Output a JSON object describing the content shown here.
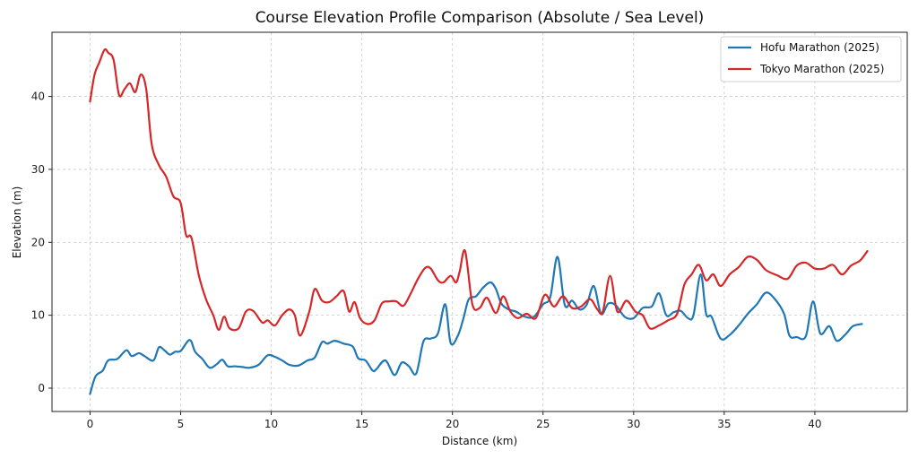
{
  "chart_data": {
    "type": "line",
    "title": "Course Elevation Profile Comparison (Absolute / Sea Level)",
    "xlabel": "Distance (km)",
    "ylabel": "Elevation (m)",
    "xlim": [
      -2.1,
      45.1
    ],
    "ylim": [
      -3.2,
      48.8
    ],
    "xticks": [
      0,
      5,
      10,
      15,
      20,
      25,
      30,
      35,
      40
    ],
    "yticks": [
      0,
      10,
      20,
      30,
      40
    ],
    "grid": true,
    "legend_position": "top-right",
    "series": [
      {
        "name": "Hofu Marathon (2025)",
        "color": "#1f77b4",
        "x": [
          0,
          0.3,
          0.7,
          1.0,
          1.5,
          2.0,
          2.3,
          2.7,
          3.0,
          3.5,
          3.8,
          4.1,
          4.4,
          4.7,
          5.0,
          5.5,
          5.8,
          6.2,
          6.6,
          7.0,
          7.3,
          7.6,
          8.0,
          8.4,
          8.8,
          9.3,
          9.8,
          10.2,
          10.6,
          11.0,
          11.5,
          12.0,
          12.4,
          12.8,
          13.1,
          13.5,
          14.0,
          14.5,
          14.8,
          15.2,
          15.6,
          15.8,
          16.3,
          16.8,
          17.2,
          17.6,
          18.0,
          18.4,
          18.8,
          19.2,
          19.6,
          19.9,
          20.3,
          20.6,
          20.9,
          21.3,
          21.7,
          22.1,
          22.4,
          22.7,
          23.1,
          23.5,
          24.0,
          24.5,
          25.0,
          25.4,
          25.8,
          26.2,
          26.6,
          27.0,
          27.4,
          27.8,
          28.2,
          28.6,
          29.0,
          29.5,
          30.0,
          30.5,
          31.0,
          31.4,
          31.8,
          32.2,
          32.6,
          33.0,
          33.3,
          33.7,
          34.0,
          34.3,
          34.8,
          35.3,
          35.8,
          36.3,
          36.8,
          37.3,
          37.8,
          38.3,
          38.6,
          39.0,
          39.5,
          39.9,
          40.3,
          40.8,
          41.2,
          41.7,
          42.1,
          42.6
        ],
        "values": [
          -0.8,
          1.6,
          2.4,
          3.8,
          4.0,
          5.2,
          4.4,
          4.8,
          4.4,
          3.8,
          5.6,
          5.2,
          4.6,
          5.0,
          5.1,
          6.6,
          5.0,
          4.0,
          2.8,
          3.3,
          3.9,
          3.0,
          3.0,
          2.9,
          2.8,
          3.2,
          4.5,
          4.3,
          3.8,
          3.2,
          3.1,
          3.8,
          4.2,
          6.3,
          6.1,
          6.5,
          6.1,
          5.7,
          4.1,
          3.8,
          2.4,
          2.6,
          3.8,
          1.8,
          3.5,
          3.0,
          2.0,
          6.4,
          6.8,
          7.5,
          11.5,
          6.2,
          7.2,
          9.5,
          12.2,
          12.6,
          13.8,
          14.5,
          13.6,
          11.6,
          10.8,
          10.5,
          9.8,
          9.8,
          11.5,
          12.5,
          18.0,
          11.4,
          12.0,
          10.8,
          11.4,
          14.0,
          10.2,
          11.6,
          11.4,
          9.8,
          9.6,
          11.0,
          11.2,
          13.0,
          10.0,
          10.4,
          10.6,
          9.6,
          10.0,
          15.6,
          10.2,
          9.8,
          6.8,
          7.3,
          8.6,
          10.2,
          11.5,
          13.1,
          12.2,
          10.2,
          7.2,
          7.0,
          7.1,
          11.9,
          7.5,
          8.5,
          6.5,
          7.4,
          8.5,
          8.8
        ]
      },
      {
        "name": "Tokyo Marathon (2025)",
        "color": "#d62728",
        "x": [
          0,
          0.25,
          0.5,
          0.8,
          1.0,
          1.3,
          1.6,
          1.9,
          2.2,
          2.5,
          2.8,
          3.1,
          3.4,
          3.8,
          4.2,
          4.6,
          5.0,
          5.3,
          5.6,
          6.0,
          6.4,
          6.8,
          7.1,
          7.4,
          7.7,
          8.2,
          8.6,
          9.0,
          9.5,
          9.8,
          10.2,
          10.6,
          11.0,
          11.3,
          11.6,
          12.1,
          12.4,
          12.8,
          13.2,
          13.6,
          14.0,
          14.3,
          14.6,
          14.9,
          15.3,
          15.7,
          16.1,
          16.5,
          16.9,
          17.3,
          17.7,
          18.1,
          18.5,
          18.8,
          19.2,
          19.5,
          19.9,
          20.2,
          20.4,
          20.7,
          21.1,
          21.5,
          21.9,
          22.4,
          22.8,
          23.2,
          23.6,
          24.1,
          24.6,
          25.1,
          25.6,
          26.1,
          26.6,
          27.1,
          27.6,
          28.0,
          28.3,
          28.7,
          29.1,
          29.6,
          30.1,
          30.5,
          30.9,
          31.4,
          31.9,
          32.4,
          32.8,
          33.2,
          33.6,
          34.0,
          34.4,
          34.8,
          35.3,
          35.8,
          36.3,
          36.8,
          37.3,
          37.9,
          38.5,
          39.0,
          39.5,
          40.0,
          40.5,
          41.0,
          41.5,
          42.0,
          42.5,
          42.9
        ],
        "values": [
          39.3,
          43.0,
          44.6,
          46.4,
          46.0,
          45.0,
          40.2,
          41.0,
          41.8,
          40.6,
          43.0,
          41.0,
          33.5,
          30.6,
          29.0,
          26.3,
          25.4,
          21.0,
          20.6,
          15.5,
          12.2,
          10.0,
          8.0,
          9.8,
          8.2,
          8.2,
          10.5,
          10.6,
          9.0,
          9.3,
          8.6,
          10.0,
          10.8,
          10.0,
          7.2,
          10.5,
          13.6,
          12.0,
          11.8,
          12.6,
          13.3,
          10.5,
          11.8,
          9.6,
          8.8,
          9.3,
          11.6,
          11.9,
          11.9,
          11.3,
          13.0,
          15.0,
          16.5,
          16.4,
          14.8,
          14.5,
          15.4,
          14.5,
          16.0,
          18.8,
          11.5,
          11.0,
          12.4,
          10.3,
          12.6,
          10.5,
          9.6,
          10.2,
          9.6,
          12.8,
          11.2,
          12.6,
          11.0,
          11.2,
          12.2,
          10.8,
          10.5,
          15.4,
          10.5,
          12.0,
          10.5,
          10.0,
          8.2,
          8.6,
          9.3,
          10.2,
          14.2,
          15.6,
          16.9,
          14.8,
          15.6,
          14.0,
          15.6,
          16.6,
          18.0,
          17.6,
          16.2,
          15.5,
          15.0,
          16.8,
          17.2,
          16.4,
          16.4,
          16.9,
          15.6,
          16.8,
          17.5,
          18.8
        ]
      }
    ]
  }
}
